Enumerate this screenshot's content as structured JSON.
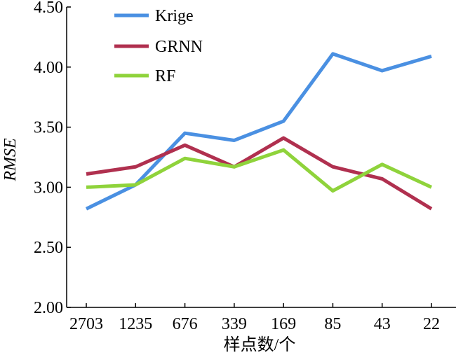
{
  "chart_data": {
    "type": "line",
    "categories": [
      "2703",
      "1235",
      "676",
      "339",
      "169",
      "85",
      "43",
      "22"
    ],
    "series": [
      {
        "name": "Krige",
        "color": "#4a90e2",
        "values": [
          2.82,
          3.02,
          3.45,
          3.39,
          3.55,
          4.11,
          3.97,
          4.09
        ]
      },
      {
        "name": "GRNN",
        "color": "#b0304f",
        "values": [
          3.11,
          3.17,
          3.35,
          3.17,
          3.41,
          3.17,
          3.07,
          2.82
        ]
      },
      {
        "name": "RF",
        "color": "#8fd33b",
        "values": [
          3.0,
          3.02,
          3.24,
          3.17,
          3.31,
          2.97,
          3.19,
          3.0
        ]
      }
    ],
    "xlabel": "样点数/个",
    "ylabel": "RMSE",
    "ylim": [
      2.0,
      4.5
    ],
    "yticks": [
      "2.00",
      "2.50",
      "3.00",
      "3.50",
      "4.00",
      "4.50"
    ],
    "legend_position": "top-left",
    "grid": false
  }
}
